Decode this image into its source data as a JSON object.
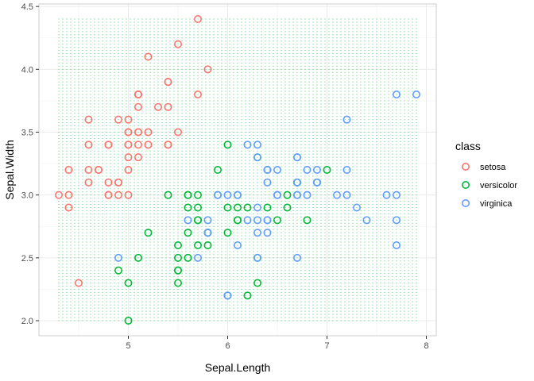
{
  "chart_data": {
    "type": "scatter",
    "xlabel": "Sepal.Length",
    "ylabel": "Sepal.Width",
    "xlim": [
      4.1,
      8.1
    ],
    "ylim": [
      1.88,
      4.52
    ],
    "x_ticks": [
      5,
      6,
      7,
      8
    ],
    "y_ticks": [
      2.0,
      2.5,
      3.0,
      3.5,
      4.0,
      4.5
    ],
    "x_tick_labels": [
      "5",
      "6",
      "7",
      "8"
    ],
    "y_tick_labels": [
      "2.0",
      "2.5",
      "3.0",
      "3.5",
      "4.0",
      "4.5"
    ],
    "grid": true,
    "legend": {
      "title": "class",
      "position": "right",
      "entries": [
        {
          "label": "setosa",
          "color": "#F8766D"
        },
        {
          "label": "versicolor",
          "color": "#00BA38"
        },
        {
          "label": "virginica",
          "color": "#619CFF"
        }
      ]
    },
    "background_grid": {
      "color": "#00BA38",
      "x_range": [
        4.3,
        7.9
      ],
      "y_range": [
        2.0,
        4.4
      ],
      "x_step": 0.04,
      "y_step": 0.025
    },
    "series": [
      {
        "name": "setosa",
        "color": "#F8766D",
        "points": [
          [
            5.1,
            3.5
          ],
          [
            4.9,
            3.0
          ],
          [
            4.7,
            3.2
          ],
          [
            4.6,
            3.1
          ],
          [
            5.0,
            3.6
          ],
          [
            5.4,
            3.9
          ],
          [
            4.6,
            3.4
          ],
          [
            5.0,
            3.4
          ],
          [
            4.4,
            2.9
          ],
          [
            4.9,
            3.1
          ],
          [
            5.4,
            3.7
          ],
          [
            4.8,
            3.4
          ],
          [
            4.8,
            3.0
          ],
          [
            4.3,
            3.0
          ],
          [
            5.8,
            4.0
          ],
          [
            5.7,
            4.4
          ],
          [
            5.4,
            3.9
          ],
          [
            5.1,
            3.5
          ],
          [
            5.7,
            3.8
          ],
          [
            5.1,
            3.8
          ],
          [
            5.4,
            3.4
          ],
          [
            5.1,
            3.7
          ],
          [
            4.6,
            3.6
          ],
          [
            5.1,
            3.3
          ],
          [
            4.8,
            3.4
          ],
          [
            5.0,
            3.0
          ],
          [
            5.0,
            3.4
          ],
          [
            5.2,
            3.5
          ],
          [
            5.2,
            3.4
          ],
          [
            4.7,
            3.2
          ],
          [
            4.8,
            3.1
          ],
          [
            5.4,
            3.4
          ],
          [
            5.2,
            4.1
          ],
          [
            5.5,
            4.2
          ],
          [
            4.9,
            3.1
          ],
          [
            5.0,
            3.2
          ],
          [
            5.5,
            3.5
          ],
          [
            4.9,
            3.6
          ],
          [
            4.4,
            3.0
          ],
          [
            5.1,
            3.4
          ],
          [
            5.0,
            3.5
          ],
          [
            4.5,
            2.3
          ],
          [
            4.4,
            3.2
          ],
          [
            5.0,
            3.5
          ],
          [
            5.1,
            3.8
          ],
          [
            4.8,
            3.0
          ],
          [
            5.1,
            3.8
          ],
          [
            4.6,
            3.2
          ],
          [
            5.3,
            3.7
          ],
          [
            5.0,
            3.3
          ]
        ]
      },
      {
        "name": "versicolor",
        "color": "#00BA38",
        "points": [
          [
            7.0,
            3.2
          ],
          [
            6.4,
            3.2
          ],
          [
            6.9,
            3.1
          ],
          [
            5.5,
            2.3
          ],
          [
            6.5,
            2.8
          ],
          [
            5.7,
            2.8
          ],
          [
            6.3,
            3.3
          ],
          [
            4.9,
            2.4
          ],
          [
            6.6,
            2.9
          ],
          [
            5.2,
            2.7
          ],
          [
            5.0,
            2.0
          ],
          [
            5.9,
            3.0
          ],
          [
            6.0,
            2.2
          ],
          [
            6.1,
            2.9
          ],
          [
            5.6,
            2.9
          ],
          [
            6.7,
            3.1
          ],
          [
            5.6,
            3.0
          ],
          [
            5.8,
            2.7
          ],
          [
            6.2,
            2.2
          ],
          [
            5.6,
            2.5
          ],
          [
            5.9,
            3.2
          ],
          [
            6.1,
            2.8
          ],
          [
            6.3,
            2.5
          ],
          [
            6.1,
            2.8
          ],
          [
            6.4,
            2.9
          ],
          [
            6.6,
            3.0
          ],
          [
            6.8,
            2.8
          ],
          [
            6.7,
            3.0
          ],
          [
            6.0,
            2.9
          ],
          [
            5.7,
            2.6
          ],
          [
            5.5,
            2.4
          ],
          [
            5.5,
            2.4
          ],
          [
            5.8,
            2.7
          ],
          [
            6.0,
            2.7
          ],
          [
            5.4,
            3.0
          ],
          [
            6.0,
            3.4
          ],
          [
            6.7,
            3.1
          ],
          [
            6.3,
            2.3
          ],
          [
            5.6,
            3.0
          ],
          [
            5.5,
            2.5
          ],
          [
            5.5,
            2.6
          ],
          [
            6.1,
            3.0
          ],
          [
            5.8,
            2.6
          ],
          [
            5.0,
            2.3
          ],
          [
            5.6,
            2.7
          ],
          [
            5.7,
            3.0
          ],
          [
            5.7,
            2.9
          ],
          [
            6.2,
            2.9
          ],
          [
            5.1,
            2.5
          ],
          [
            5.7,
            2.8
          ]
        ]
      },
      {
        "name": "virginica",
        "color": "#619CFF",
        "points": [
          [
            6.3,
            3.3
          ],
          [
            5.8,
            2.7
          ],
          [
            7.1,
            3.0
          ],
          [
            6.3,
            2.9
          ],
          [
            6.5,
            3.0
          ],
          [
            7.6,
            3.0
          ],
          [
            4.9,
            2.5
          ],
          [
            7.3,
            2.9
          ],
          [
            6.7,
            2.5
          ],
          [
            7.2,
            3.6
          ],
          [
            6.5,
            3.2
          ],
          [
            6.4,
            2.7
          ],
          [
            6.8,
            3.0
          ],
          [
            5.7,
            2.5
          ],
          [
            5.8,
            2.8
          ],
          [
            6.4,
            3.2
          ],
          [
            6.5,
            3.0
          ],
          [
            7.7,
            3.8
          ],
          [
            7.7,
            2.6
          ],
          [
            6.0,
            2.2
          ],
          [
            6.9,
            3.2
          ],
          [
            5.6,
            2.8
          ],
          [
            7.7,
            2.8
          ],
          [
            6.3,
            2.7
          ],
          [
            6.7,
            3.3
          ],
          [
            7.2,
            3.2
          ],
          [
            6.2,
            2.8
          ],
          [
            6.1,
            3.0
          ],
          [
            6.4,
            2.8
          ],
          [
            7.2,
            3.0
          ],
          [
            7.4,
            2.8
          ],
          [
            7.9,
            3.8
          ],
          [
            6.4,
            2.8
          ],
          [
            6.3,
            2.8
          ],
          [
            6.1,
            2.6
          ],
          [
            7.7,
            3.0
          ],
          [
            6.3,
            3.4
          ],
          [
            6.4,
            3.1
          ],
          [
            6.0,
            3.0
          ],
          [
            6.9,
            3.1
          ],
          [
            6.7,
            3.1
          ],
          [
            6.9,
            3.1
          ],
          [
            5.8,
            2.7
          ],
          [
            6.8,
            3.2
          ],
          [
            6.7,
            3.3
          ],
          [
            6.7,
            3.0
          ],
          [
            6.3,
            2.5
          ],
          [
            6.5,
            3.0
          ],
          [
            6.2,
            3.4
          ],
          [
            5.9,
            3.0
          ]
        ]
      }
    ]
  }
}
